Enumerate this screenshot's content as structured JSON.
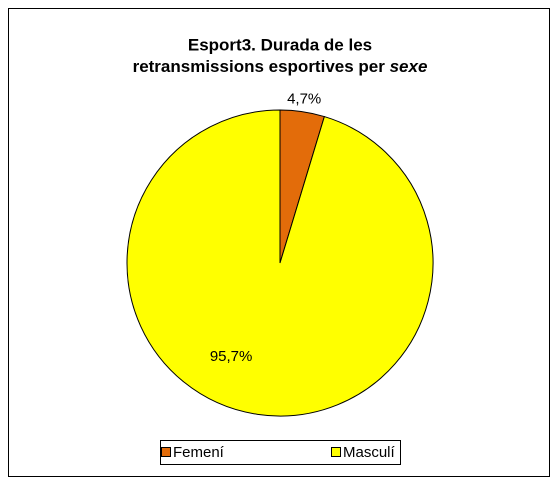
{
  "chart_data": {
    "type": "pie",
    "title": [
      "Esport3. Durada de les",
      "retransmissions esportives per",
      "sexe"
    ],
    "categories": [
      "Femení",
      "Masculí"
    ],
    "values": [
      4.7,
      95.7
    ],
    "value_labels": [
      "4,7%",
      "95,7%"
    ],
    "colors": [
      "#e36c0a",
      "#ffff00"
    ],
    "legend": "bottom"
  }
}
